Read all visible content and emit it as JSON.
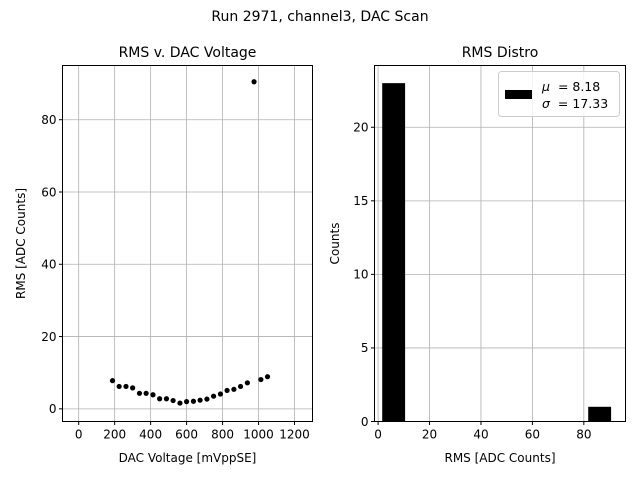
{
  "figure": {
    "suptitle": "Run 2971, channel3, DAC Scan"
  },
  "chart_data": [
    {
      "type": "scatter",
      "title": "RMS v. DAC Voltage",
      "xlabel": "DAC Voltage [mVppSE]",
      "ylabel": "RMS [ADC Counts]",
      "xlim": [
        -90,
        1300
      ],
      "ylim": [
        -3.5,
        95
      ],
      "xticks": [
        0,
        200,
        400,
        600,
        800,
        1000,
        1200
      ],
      "yticks": [
        0,
        20,
        40,
        60,
        80
      ],
      "grid": true,
      "marker_color": "#000000",
      "x": [
        188,
        225,
        263,
        300,
        338,
        375,
        413,
        450,
        488,
        525,
        563,
        600,
        638,
        675,
        713,
        750,
        788,
        825,
        863,
        900,
        938,
        975,
        1013,
        1050
      ],
      "y": [
        7.8,
        6.2,
        6.2,
        5.8,
        4.3,
        4.3,
        3.9,
        2.8,
        2.8,
        2.3,
        1.6,
        2.0,
        2.1,
        2.4,
        2.7,
        3.5,
        4.1,
        5.1,
        5.4,
        6.2,
        7.2,
        90.5,
        8.1,
        8.9
      ]
    },
    {
      "type": "bar",
      "title": "RMS Distro",
      "xlabel": "RMS [ADC Counts]",
      "ylabel": "Counts",
      "xlim": [
        -1.4,
        96.2
      ],
      "ylim": [
        0,
        24.2
      ],
      "xticks": [
        0,
        20,
        40,
        60,
        80
      ],
      "yticks": [
        0,
        5,
        10,
        15,
        20
      ],
      "grid": true,
      "bar_color": "#000000",
      "bin_edges": [
        1.6,
        10.5,
        19.4,
        28.3,
        37.2,
        46.1,
        55.0,
        63.9,
        72.8,
        81.7,
        90.6
      ],
      "counts": [
        23,
        0,
        0,
        0,
        0,
        0,
        0,
        0,
        0,
        1
      ],
      "legend": {
        "position": "upper right",
        "mu_symbol": "μ",
        "mu_value": "= 8.18",
        "sigma_symbol": "σ",
        "sigma_value": "= 17.33"
      }
    }
  ]
}
